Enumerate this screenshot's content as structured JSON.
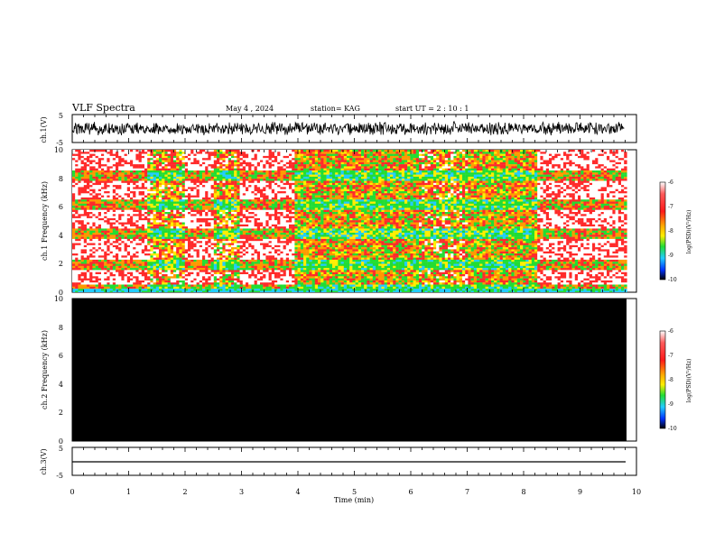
{
  "header": {
    "title": "VLF Spectra",
    "date": "May 4 , 2024",
    "station": "station= KAG",
    "start": "start UT =  2 : 10 : 1"
  },
  "chart_data": [
    {
      "type": "line",
      "panel": "ch1-waveform",
      "ylabel": "ch.1(V)",
      "yticks": [
        "5",
        "-5"
      ],
      "ylim": [
        -5,
        5
      ],
      "x_range_min": [
        0,
        9.85
      ],
      "description_values": {
        "mean_v": 0.0,
        "approx_envelope_v": [
          -1.3,
          1.3
        ]
      }
    },
    {
      "type": "heatmap",
      "panel": "ch1-spectrogram",
      "ylabel": "ch.1 Frequency (kHz)",
      "yticks": [
        "0",
        "2",
        "4",
        "6",
        "8",
        "10"
      ],
      "ylim": [
        0,
        10
      ],
      "xlim": [
        0,
        10
      ],
      "colorbar": {
        "label": "log(PSD)(V²/Hz)",
        "ticks": [
          "-6",
          "-7",
          "-8",
          "-9",
          "-10"
        ],
        "range": [
          -10,
          -6
        ]
      },
      "segments_min": [
        {
          "x": [
            0.0,
            1.3
          ],
          "level": "low"
        },
        {
          "x": [
            1.3,
            1.95
          ],
          "level": "mid"
        },
        {
          "x": [
            1.95,
            2.5
          ],
          "level": "low"
        },
        {
          "x": [
            2.5,
            2.95
          ],
          "level": "mid"
        },
        {
          "x": [
            2.95,
            3.9
          ],
          "level": "low"
        },
        {
          "x": [
            3.9,
            6.1
          ],
          "level": "high"
        },
        {
          "x": [
            6.1,
            7.0
          ],
          "level": "mid"
        },
        {
          "x": [
            7.0,
            8.2
          ],
          "level": "high"
        },
        {
          "x": [
            8.2,
            9.85
          ],
          "level": "low"
        }
      ],
      "bands_khz": [
        0.2,
        2.0,
        4.2,
        6.2,
        8.3
      ]
    },
    {
      "type": "heatmap",
      "panel": "ch2-spectrogram",
      "ylabel": "ch.2 Frequency (kHz)",
      "yticks": [
        "0",
        "2",
        "4",
        "6",
        "8",
        "10"
      ],
      "ylim": [
        0,
        10
      ],
      "xlim": [
        0,
        10
      ],
      "fill": "#000000",
      "colorbar": {
        "label": "log(PSD)(V²/Hz)",
        "ticks": [
          "-6",
          "-7",
          "-8",
          "-9",
          "-10"
        ],
        "range": [
          -10,
          -6
        ]
      }
    },
    {
      "type": "line",
      "panel": "ch3-waveform",
      "ylabel": "ch.3(V)",
      "yticks": [
        "5",
        "-5"
      ],
      "ylim": [
        -5,
        5
      ],
      "x": [
        0,
        9.85
      ],
      "y": [
        -1.5,
        -1.5
      ]
    }
  ],
  "xaxis": {
    "label": "Time  (min)",
    "ticks": [
      "0",
      "1",
      "2",
      "3",
      "4",
      "5",
      "6",
      "7",
      "8",
      "9",
      "10"
    ]
  },
  "colors": {
    "white": "#ffffff",
    "red": "#ff2a2a",
    "orange": "#ff9900",
    "yellow": "#ffee00",
    "green": "#22dd33",
    "cyan": "#22ccff",
    "blue": "#0033ff",
    "black": "#000000"
  }
}
